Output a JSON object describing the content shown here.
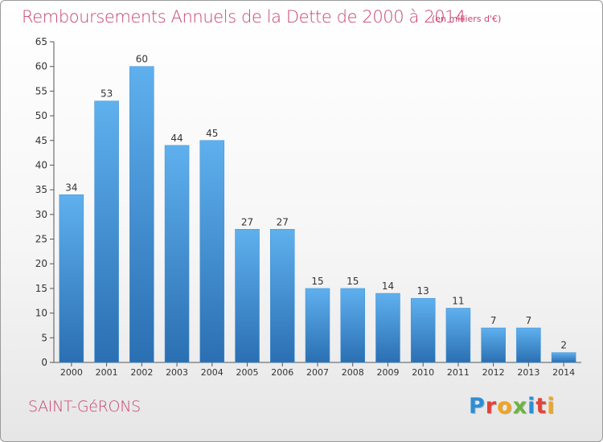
{
  "chart_data": {
    "type": "bar",
    "title": "Remboursements Annuels de la Dette de 2000 à 2014",
    "subtitle": "(en milliers d'€)",
    "categories": [
      "2000",
      "2001",
      "2002",
      "2003",
      "2004",
      "2005",
      "2006",
      "2007",
      "2008",
      "2009",
      "2010",
      "2011",
      "2012",
      "2013",
      "2014"
    ],
    "values": [
      34,
      53,
      60,
      44,
      45,
      27,
      27,
      15,
      15,
      14,
      13,
      11,
      7,
      7,
      2
    ],
    "ylim": [
      0,
      65
    ],
    "yticks": [
      0,
      5,
      10,
      15,
      20,
      25,
      30,
      35,
      40,
      45,
      50,
      55,
      60,
      65
    ],
    "grid": false,
    "bar_color": "#3d8fd6",
    "bar_color_light": "#5fb0ee",
    "bar_color_dark": "#2a6fb2"
  },
  "commune": "SAINT-GéRONS",
  "logo": {
    "letters": [
      "P",
      "r",
      "o",
      "x",
      "i",
      "t",
      "i"
    ],
    "colors": [
      "#2b8fd6",
      "#e2433a",
      "#f2a51c",
      "#6bb43f",
      "#2b8fd6",
      "#e2433a",
      "#f2a51c"
    ]
  },
  "colors": {
    "title": "#c8456e"
  }
}
